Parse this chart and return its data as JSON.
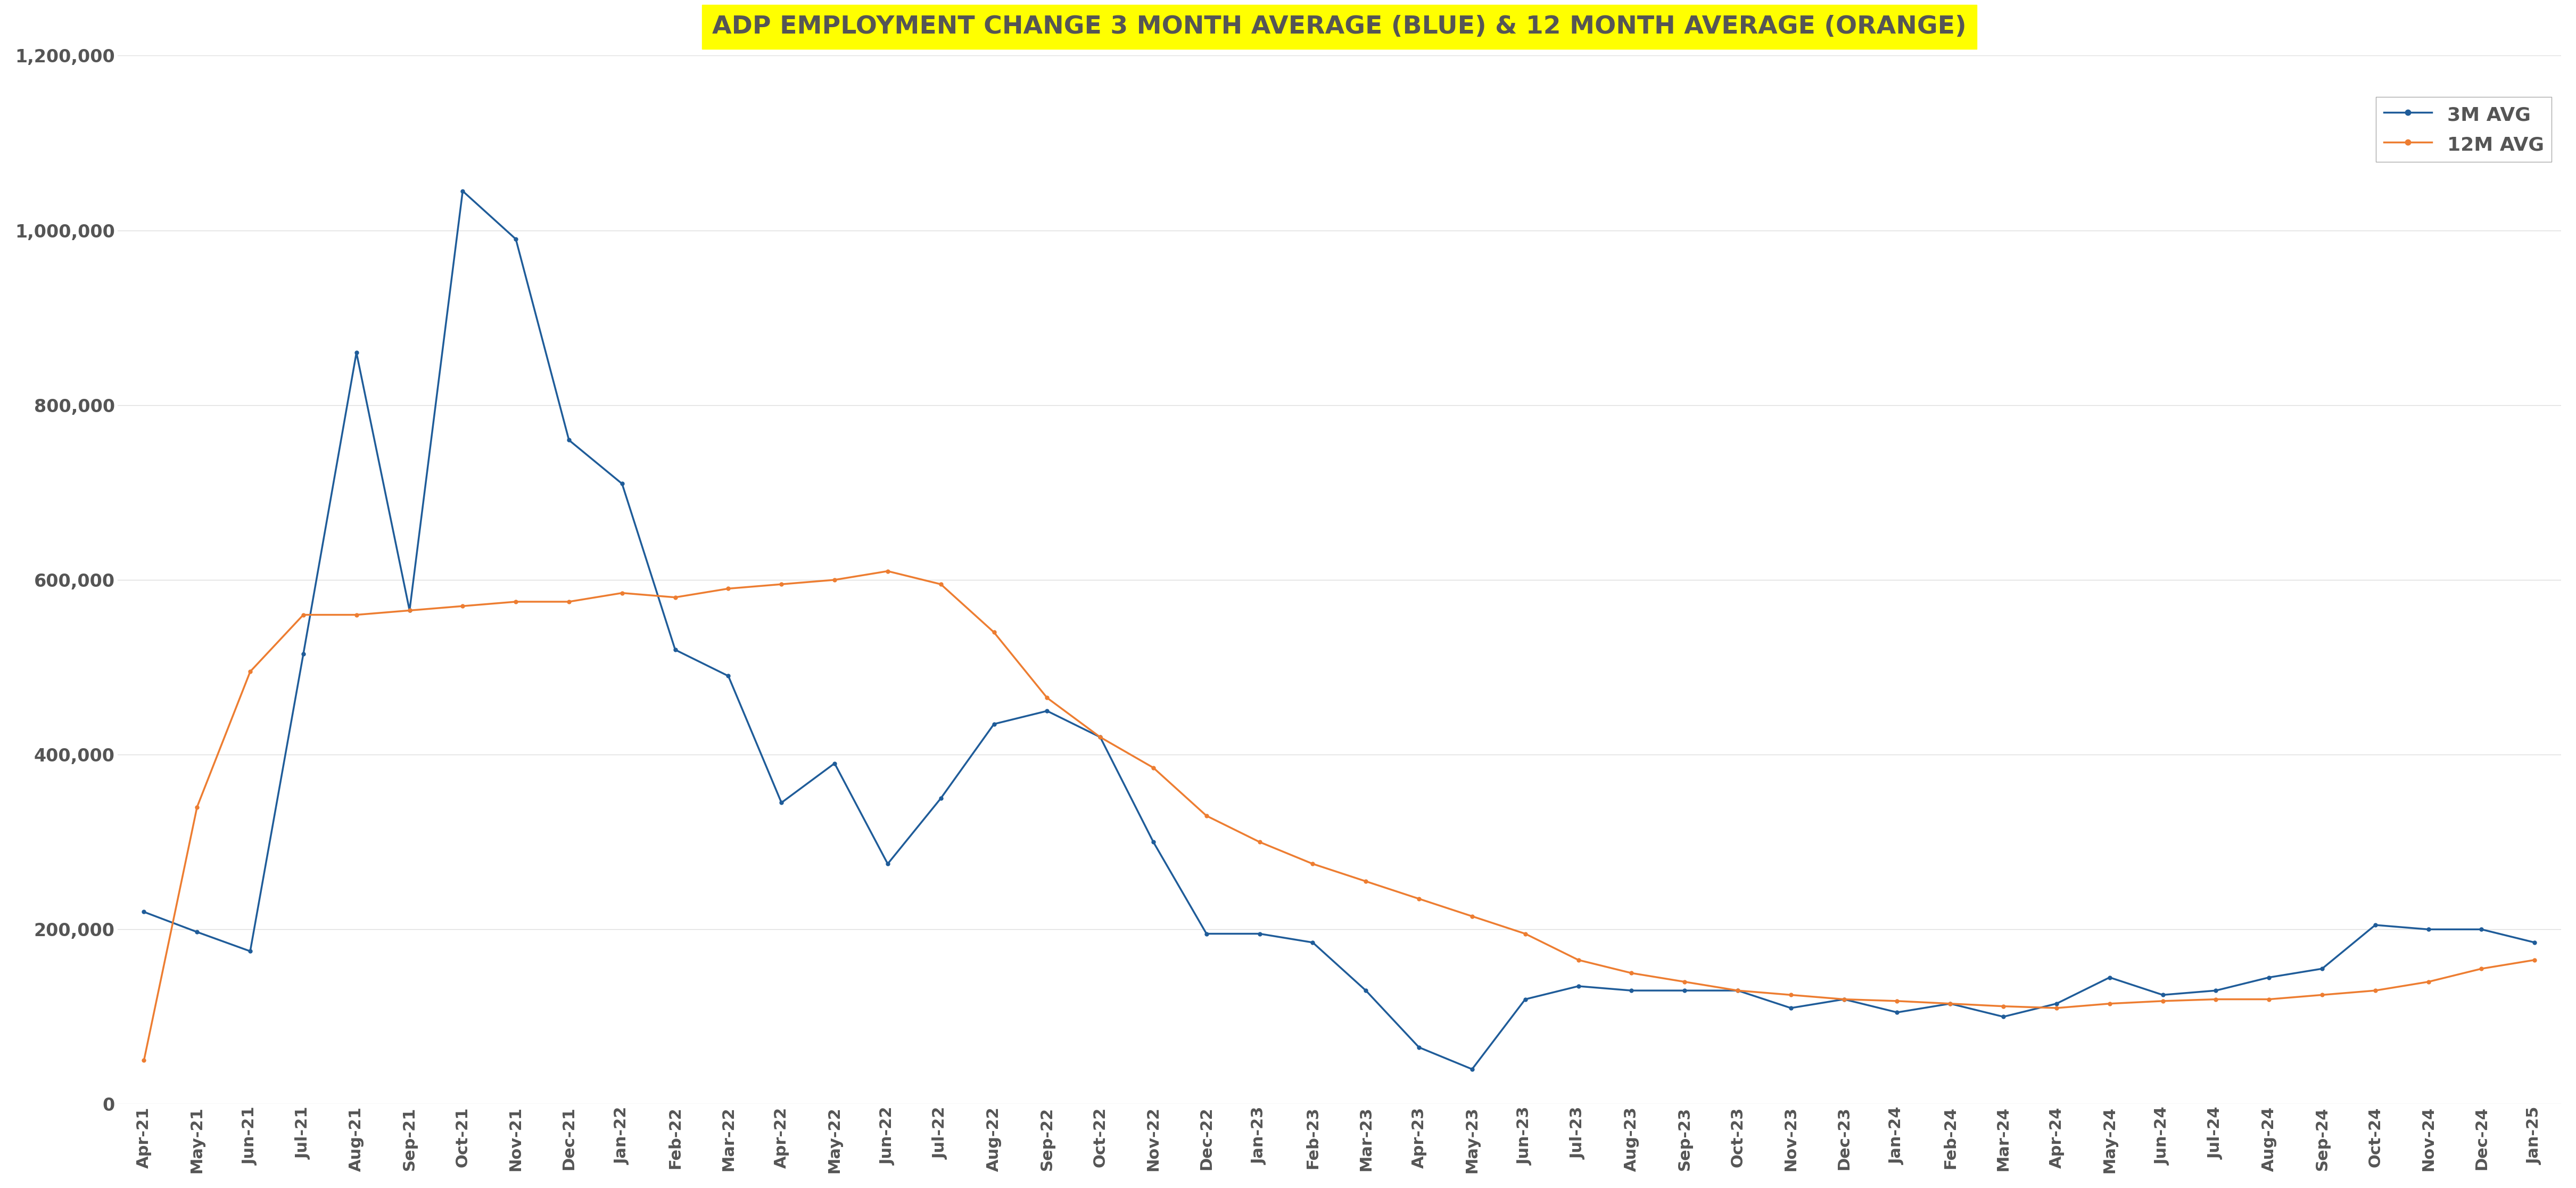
{
  "title": "ADP EMPLOYMENT CHANGE 3 MONTH AVERAGE (BLUE) & 12 MONTH AVERAGE (ORANGE)",
  "title_bg": "#FFFF00",
  "title_color": "#555555",
  "labels": [
    "Apr-21",
    "May-21",
    "Jun-21",
    "Jul-21",
    "Aug-21",
    "Sep-21",
    "Oct-21",
    "Nov-21",
    "Dec-21",
    "Jan-22",
    "Feb-22",
    "Mar-22",
    "Apr-22",
    "May-22",
    "Jun-22",
    "Jul-22",
    "Aug-22",
    "Sep-22",
    "Oct-22",
    "Nov-22",
    "Dec-22",
    "Jan-23",
    "Feb-23",
    "Mar-23",
    "Apr-23",
    "May-23",
    "Jun-23",
    "Jul-23",
    "Aug-23",
    "Sep-23",
    "Oct-23",
    "Nov-23",
    "Dec-23",
    "Jan-24",
    "Feb-24",
    "Mar-24",
    "Apr-24",
    "May-24",
    "Jun-24",
    "Jul-24",
    "Aug-24",
    "Sep-24",
    "Oct-24",
    "Nov-24",
    "Dec-24",
    "Jan-25"
  ],
  "three_month_avg": [
    220000,
    197000,
    175000,
    515000,
    860000,
    565000,
    1045000,
    990000,
    760000,
    710000,
    520000,
    490000,
    345000,
    390000,
    275000,
    350000,
    435000,
    450000,
    420000,
    300000,
    195000,
    195000,
    185000,
    130000,
    65000,
    40000,
    120000,
    135000,
    130000,
    130000,
    130000,
    110000,
    120000,
    105000,
    115000,
    100000,
    115000,
    145000,
    125000,
    130000,
    145000,
    155000,
    205000,
    200000,
    200000,
    185000
  ],
  "twelve_month_avg": [
    50000,
    340000,
    495000,
    560000,
    560000,
    565000,
    570000,
    575000,
    575000,
    585000,
    580000,
    590000,
    595000,
    600000,
    610000,
    595000,
    540000,
    465000,
    420000,
    385000,
    330000,
    300000,
    275000,
    255000,
    235000,
    215000,
    195000,
    165000,
    150000,
    140000,
    130000,
    125000,
    120000,
    118000,
    115000,
    112000,
    110000,
    115000,
    118000,
    120000,
    120000,
    125000,
    130000,
    140000,
    155000,
    165000
  ],
  "line_color_3m": "#1F5C99",
  "line_color_12m": "#ED7D31",
  "marker_3m": "o",
  "marker_12m": "o",
  "ylim": [
    0,
    1200000
  ],
  "yticks": [
    0,
    200000,
    400000,
    600000,
    800000,
    1000000,
    1200000
  ],
  "background_color": "#FFFFFF",
  "grid_color": "#DDDDDD",
  "legend_labels": [
    "3M AVG",
    "12M AVG"
  ],
  "line_width": 2.5,
  "marker_size": 5
}
